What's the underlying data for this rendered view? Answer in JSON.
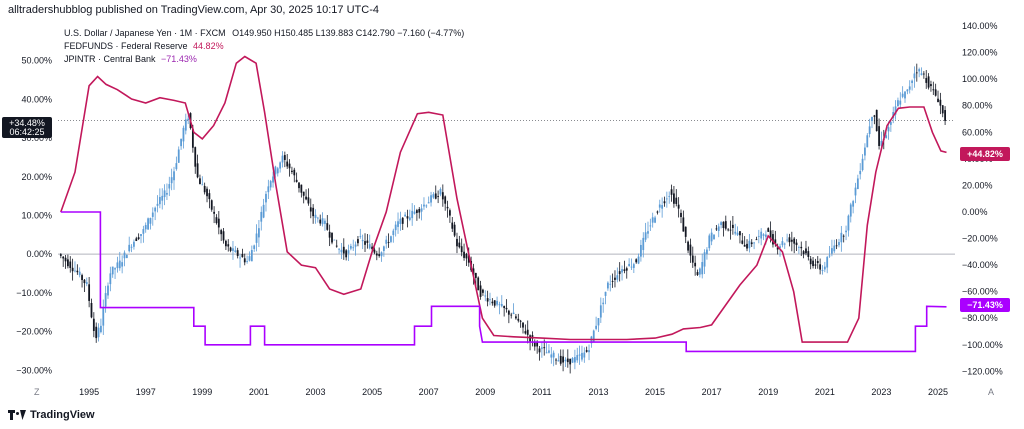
{
  "header": {
    "publisher_line": "alltradershubblog published on TradingView.com, Apr 30, 2025 10:17 UTC-4"
  },
  "legend": {
    "main": "U.S. Dollar / Japanese Yen · 1M · FXCM",
    "ohlc": "O149.950  H150.485  L139.883  C142.790  −7.160 (−4.77%)",
    "fed_label": "FEDFUNDS · Federal Reserve",
    "fed_value": "44.82%",
    "jp_label": "JPINTR · Central Bank",
    "jp_value": "−71.43%"
  },
  "colors": {
    "candle_up": "#5b9bd5",
    "candle_down": "#131722",
    "fedfunds": "#c2185b",
    "jpintr": "#aa00ff",
    "crosshair": "#131722",
    "zero_line": "#b2b5be"
  },
  "crosshair": {
    "value": "+34.48%",
    "time": "06:42:25"
  },
  "badges": {
    "fed": "+44.82%",
    "jp": "−71.43%"
  },
  "corner_labels": {
    "left": "Z",
    "right": "A"
  },
  "footer": {
    "brand": "TradingView"
  },
  "chart_data": {
    "type": "line",
    "x_axis": {
      "ticks": [
        "1995",
        "1997",
        "1999",
        "2001",
        "2003",
        "2005",
        "2007",
        "2009",
        "2011",
        "2013",
        "2015",
        "2017",
        "2019",
        "2021",
        "2023",
        "2025"
      ],
      "range": [
        1993.9,
        2025.6
      ]
    },
    "left_axis": {
      "ticks": [
        "50.00%",
        "40.00%",
        "30.00%",
        "20.00%",
        "10.00%",
        "0.00%",
        "−10.00%",
        "−20.00%",
        "−30.00%"
      ],
      "range": [
        -32,
        60
      ]
    },
    "right_axis": {
      "ticks": [
        "140.00%",
        "120.00%",
        "100.00%",
        "80.00%",
        "60.00%",
        "40.00%",
        "20.00%",
        "0.00%",
        "−20.00%",
        "−40.00%",
        "−60.00%",
        "−80.00%",
        "−100.00%",
        "−120.00%"
      ],
      "range": [
        -125,
        143
      ]
    },
    "series": [
      {
        "name": "U.S. Dollar / Japanese Yen",
        "axis": "left",
        "style": "candles",
        "points": [
          [
            1994.0,
            0
          ],
          [
            1994.3,
            -2
          ],
          [
            1994.7,
            -5
          ],
          [
            1995.0,
            -8
          ],
          [
            1995.3,
            -22
          ],
          [
            1995.5,
            -18
          ],
          [
            1995.8,
            -5
          ],
          [
            1996.2,
            -2
          ],
          [
            1996.6,
            3
          ],
          [
            1997.0,
            6
          ],
          [
            1997.4,
            12
          ],
          [
            1997.8,
            16
          ],
          [
            1998.1,
            22
          ],
          [
            1998.4,
            32
          ],
          [
            1998.6,
            36
          ],
          [
            1998.9,
            20
          ],
          [
            1999.2,
            16
          ],
          [
            1999.6,
            8
          ],
          [
            1999.9,
            2
          ],
          [
            2000.3,
            0
          ],
          [
            2000.7,
            -2
          ],
          [
            2001.0,
            5
          ],
          [
            2001.4,
            18
          ],
          [
            2001.9,
            25
          ],
          [
            2002.2,
            22
          ],
          [
            2002.6,
            16
          ],
          [
            2003.0,
            10
          ],
          [
            2003.4,
            8
          ],
          [
            2003.8,
            2
          ],
          [
            2004.2,
            0
          ],
          [
            2004.6,
            4
          ],
          [
            2005.0,
            2
          ],
          [
            2005.3,
            0
          ],
          [
            2005.7,
            4
          ],
          [
            2006.0,
            8
          ],
          [
            2006.4,
            10
          ],
          [
            2006.8,
            12
          ],
          [
            2007.1,
            14
          ],
          [
            2007.5,
            16
          ],
          [
            2007.8,
            10
          ],
          [
            2008.1,
            2
          ],
          [
            2008.5,
            -2
          ],
          [
            2008.9,
            -10
          ],
          [
            2009.3,
            -12
          ],
          [
            2009.7,
            -14
          ],
          [
            2010.1,
            -16
          ],
          [
            2010.5,
            -20
          ],
          [
            2010.9,
            -24
          ],
          [
            2011.4,
            -26
          ],
          [
            2011.9,
            -28
          ],
          [
            2012.3,
            -27
          ],
          [
            2012.7,
            -25
          ],
          [
            2013.0,
            -18
          ],
          [
            2013.4,
            -8
          ],
          [
            2013.9,
            -4
          ],
          [
            2014.4,
            -2
          ],
          [
            2014.8,
            6
          ],
          [
            2015.2,
            12
          ],
          [
            2015.6,
            16
          ],
          [
            2015.9,
            12
          ],
          [
            2016.3,
            0
          ],
          [
            2016.6,
            -6
          ],
          [
            2017.0,
            4
          ],
          [
            2017.4,
            8
          ],
          [
            2017.9,
            6
          ],
          [
            2018.3,
            2
          ],
          [
            2018.7,
            4
          ],
          [
            2019.0,
            6
          ],
          [
            2019.4,
            2
          ],
          [
            2019.8,
            4
          ],
          [
            2020.2,
            2
          ],
          [
            2020.6,
            -2
          ],
          [
            2021.0,
            -4
          ],
          [
            2021.4,
            2
          ],
          [
            2021.8,
            6
          ],
          [
            2022.2,
            18
          ],
          [
            2022.5,
            28
          ],
          [
            2022.8,
            38
          ],
          [
            2023.0,
            28
          ],
          [
            2023.3,
            32
          ],
          [
            2023.7,
            40
          ],
          [
            2024.0,
            42
          ],
          [
            2024.3,
            48
          ],
          [
            2024.6,
            46
          ],
          [
            2024.9,
            42
          ],
          [
            2025.1,
            40
          ],
          [
            2025.3,
            35
          ]
        ]
      },
      {
        "name": "FEDFUNDS · Federal Reserve",
        "axis": "right",
        "style": "line",
        "points": [
          [
            1994.0,
            0
          ],
          [
            1994.5,
            30
          ],
          [
            1995.0,
            95
          ],
          [
            1995.3,
            102
          ],
          [
            1995.6,
            96
          ],
          [
            1996.0,
            92
          ],
          [
            1996.5,
            85
          ],
          [
            1997.0,
            82
          ],
          [
            1997.5,
            86
          ],
          [
            1998.0,
            84
          ],
          [
            1998.4,
            82
          ],
          [
            1998.7,
            60
          ],
          [
            1999.0,
            55
          ],
          [
            1999.4,
            65
          ],
          [
            1999.8,
            82
          ],
          [
            2000.2,
            112
          ],
          [
            2000.5,
            117
          ],
          [
            2000.9,
            112
          ],
          [
            2001.2,
            75
          ],
          [
            2001.6,
            20
          ],
          [
            2002.0,
            -30
          ],
          [
            2002.5,
            -40
          ],
          [
            2003.0,
            -42
          ],
          [
            2003.5,
            -58
          ],
          [
            2004.0,
            -62
          ],
          [
            2004.6,
            -58
          ],
          [
            2005.0,
            -30
          ],
          [
            2005.5,
            0
          ],
          [
            2006.0,
            45
          ],
          [
            2006.6,
            74
          ],
          [
            2007.0,
            75
          ],
          [
            2007.5,
            73
          ],
          [
            2008.0,
            10
          ],
          [
            2008.5,
            -40
          ],
          [
            2008.9,
            -80
          ],
          [
            2009.3,
            -93
          ],
          [
            2010.0,
            -94
          ],
          [
            2011.0,
            -95
          ],
          [
            2012.0,
            -96
          ],
          [
            2013.0,
            -96
          ],
          [
            2014.0,
            -96
          ],
          [
            2015.0,
            -95
          ],
          [
            2015.6,
            -92
          ],
          [
            2016.0,
            -88
          ],
          [
            2016.6,
            -87
          ],
          [
            2017.0,
            -85
          ],
          [
            2017.5,
            -70
          ],
          [
            2018.0,
            -55
          ],
          [
            2018.6,
            -40
          ],
          [
            2019.0,
            -18
          ],
          [
            2019.5,
            -30
          ],
          [
            2019.9,
            -60
          ],
          [
            2020.2,
            -98
          ],
          [
            2021.0,
            -98
          ],
          [
            2021.8,
            -98
          ],
          [
            2022.2,
            -80
          ],
          [
            2022.5,
            -10
          ],
          [
            2022.8,
            30
          ],
          [
            2023.2,
            65
          ],
          [
            2023.6,
            78
          ],
          [
            2024.0,
            79
          ],
          [
            2024.5,
            79
          ],
          [
            2024.8,
            60
          ],
          [
            2025.1,
            46
          ],
          [
            2025.3,
            44.82
          ]
        ]
      },
      {
        "name": "JPINTR · Central Bank",
        "axis": "right",
        "style": "step",
        "points": [
          [
            1994.0,
            0
          ],
          [
            1995.4,
            0
          ],
          [
            1995.4,
            -72
          ],
          [
            1998.7,
            -72
          ],
          [
            1998.7,
            -86
          ],
          [
            1999.1,
            -86
          ],
          [
            1999.1,
            -100
          ],
          [
            2000.7,
            -100
          ],
          [
            2000.7,
            -86
          ],
          [
            2001.2,
            -86
          ],
          [
            2001.2,
            -100
          ],
          [
            2006.5,
            -100
          ],
          [
            2006.5,
            -86
          ],
          [
            2007.1,
            -86
          ],
          [
            2007.1,
            -71
          ],
          [
            2008.8,
            -71
          ],
          [
            2008.8,
            -86
          ],
          [
            2008.9,
            -98
          ],
          [
            2016.1,
            -98
          ],
          [
            2016.1,
            -105
          ],
          [
            2024.2,
            -105
          ],
          [
            2024.2,
            -86
          ],
          [
            2024.6,
            -86
          ],
          [
            2024.6,
            -71
          ],
          [
            2025.3,
            -71.43
          ]
        ]
      }
    ]
  }
}
